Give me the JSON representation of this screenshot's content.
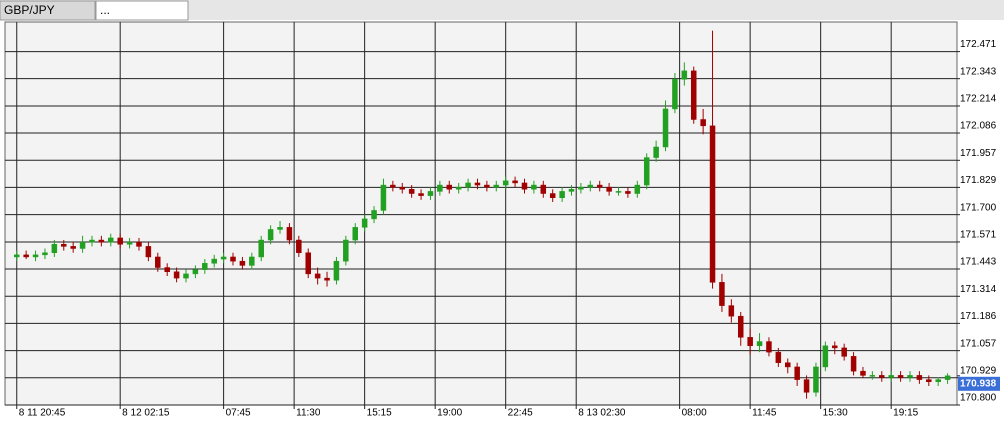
{
  "tabs": [
    "GBP/JPY",
    "..."
  ],
  "chart_data": {
    "type": "candlestick",
    "x": [
      0,
      2,
      4,
      6,
      8,
      10,
      12,
      14,
      16,
      18,
      20,
      22,
      24,
      26,
      28,
      30,
      32,
      34,
      36,
      38,
      40,
      42,
      44,
      46,
      48,
      50,
      52,
      54,
      56,
      58,
      60,
      62,
      64,
      66,
      68,
      70,
      72,
      74,
      76,
      78,
      80,
      82,
      84,
      86,
      88,
      90,
      92,
      94,
      96,
      98,
      100,
      102,
      104,
      106,
      108,
      110,
      112,
      114,
      116,
      118,
      120,
      122,
      124,
      126,
      128,
      130,
      132,
      134,
      136,
      138,
      140,
      142,
      144,
      146,
      148,
      150,
      152,
      154,
      156,
      158,
      160,
      162,
      164,
      166,
      168,
      170,
      172,
      174,
      176,
      178,
      180,
      182,
      184,
      186,
      188,
      190,
      192,
      194,
      196,
      198
    ],
    "open": [
      171.5,
      171.51,
      171.5,
      171.51,
      171.52,
      171.56,
      171.55,
      171.54,
      171.57,
      171.58,
      171.57,
      171.59,
      171.56,
      171.57,
      171.55,
      171.5,
      171.45,
      171.43,
      171.4,
      171.42,
      171.44,
      171.47,
      171.49,
      171.5,
      171.48,
      171.46,
      171.5,
      171.58,
      171.63,
      171.64,
      171.58,
      171.52,
      171.42,
      171.4,
      171.39,
      171.48,
      171.58,
      171.64,
      171.68,
      171.72,
      171.84,
      171.83,
      171.82,
      171.8,
      171.79,
      171.81,
      171.84,
      171.82,
      171.83,
      171.85,
      171.84,
      171.83,
      171.84,
      171.86,
      171.85,
      171.82,
      171.84,
      171.8,
      171.78,
      171.81,
      171.82,
      171.83,
      171.84,
      171.83,
      171.81,
      171.81,
      171.8,
      171.84,
      171.97,
      172.02,
      172.2,
      172.34,
      172.38,
      172.15,
      172.12,
      171.38,
      171.27,
      171.22,
      171.12,
      171.08,
      171.1,
      171.05,
      171.0,
      170.98,
      170.92,
      170.86,
      170.98,
      171.08,
      171.07,
      171.03,
      170.96,
      170.94,
      170.94,
      170.93,
      170.94,
      170.93,
      170.94,
      170.92,
      170.91,
      170.92
    ],
    "high": [
      171.53,
      171.53,
      171.53,
      171.54,
      171.58,
      171.58,
      171.57,
      171.6,
      171.6,
      171.6,
      171.61,
      171.61,
      171.59,
      171.59,
      171.57,
      171.52,
      171.47,
      171.45,
      171.44,
      171.46,
      171.49,
      171.51,
      171.52,
      171.52,
      171.5,
      171.52,
      171.6,
      171.65,
      171.67,
      171.66,
      171.6,
      171.54,
      171.45,
      171.43,
      171.5,
      171.6,
      171.66,
      171.7,
      171.74,
      171.87,
      171.86,
      171.85,
      171.84,
      171.82,
      171.83,
      171.86,
      171.86,
      171.85,
      171.87,
      171.87,
      171.86,
      171.86,
      171.88,
      171.88,
      171.87,
      171.86,
      171.86,
      171.82,
      171.83,
      171.84,
      171.85,
      171.86,
      171.86,
      171.85,
      171.83,
      171.83,
      171.86,
      171.99,
      172.05,
      172.24,
      172.37,
      172.42,
      172.4,
      172.2,
      172.57,
      171.42,
      171.3,
      171.24,
      171.16,
      171.14,
      171.12,
      171.07,
      171.02,
      171.0,
      170.94,
      171.0,
      171.1,
      171.1,
      171.09,
      171.05,
      170.98,
      170.96,
      170.96,
      170.96,
      170.96,
      170.96,
      170.96,
      170.94,
      170.93,
      170.95
    ],
    "low": [
      171.48,
      171.49,
      171.48,
      171.49,
      171.5,
      171.53,
      171.52,
      171.52,
      171.55,
      171.55,
      171.55,
      171.54,
      171.54,
      171.53,
      171.48,
      171.43,
      171.41,
      171.38,
      171.38,
      171.4,
      171.42,
      171.45,
      171.47,
      171.46,
      171.44,
      171.44,
      171.48,
      171.56,
      171.61,
      171.56,
      171.5,
      171.4,
      171.37,
      171.36,
      171.37,
      171.46,
      171.56,
      171.62,
      171.66,
      171.7,
      171.81,
      171.8,
      171.78,
      171.77,
      171.77,
      171.79,
      171.8,
      171.8,
      171.81,
      171.82,
      171.81,
      171.81,
      171.82,
      171.83,
      171.8,
      171.8,
      171.78,
      171.76,
      171.76,
      171.79,
      171.8,
      171.81,
      171.81,
      171.79,
      171.79,
      171.78,
      171.78,
      171.82,
      171.95,
      172.0,
      172.18,
      172.31,
      172.13,
      172.08,
      171.35,
      171.24,
      171.19,
      171.08,
      171.04,
      171.05,
      171.03,
      170.98,
      170.95,
      170.89,
      170.83,
      170.84,
      170.96,
      171.04,
      171.01,
      170.94,
      170.93,
      170.92,
      170.91,
      170.91,
      170.91,
      170.91,
      170.9,
      170.89,
      170.89,
      170.9
    ],
    "close": [
      171.51,
      171.5,
      171.51,
      171.52,
      171.56,
      171.55,
      171.54,
      171.57,
      171.58,
      171.57,
      171.59,
      171.56,
      171.57,
      171.55,
      171.5,
      171.45,
      171.43,
      171.4,
      171.42,
      171.44,
      171.47,
      171.49,
      171.5,
      171.48,
      171.46,
      171.5,
      171.58,
      171.63,
      171.64,
      171.58,
      171.52,
      171.42,
      171.4,
      171.39,
      171.48,
      171.58,
      171.64,
      171.68,
      171.72,
      171.84,
      171.83,
      171.82,
      171.8,
      171.79,
      171.81,
      171.84,
      171.82,
      171.83,
      171.85,
      171.84,
      171.83,
      171.84,
      171.86,
      171.85,
      171.82,
      171.84,
      171.8,
      171.78,
      171.81,
      171.82,
      171.83,
      171.84,
      171.83,
      171.81,
      171.81,
      171.8,
      171.84,
      171.97,
      172.02,
      172.2,
      172.34,
      172.38,
      172.15,
      172.12,
      171.38,
      171.27,
      171.22,
      171.12,
      171.08,
      171.1,
      171.05,
      171.0,
      170.98,
      170.92,
      170.86,
      170.98,
      171.08,
      171.07,
      171.03,
      170.96,
      170.94,
      170.94,
      170.93,
      170.94,
      170.93,
      170.94,
      170.92,
      170.91,
      170.92,
      170.938
    ],
    "up_color": "#22a022",
    "down_color": "#a00000",
    "last_price": 170.938,
    "xlim": [
      -2.5,
      200
    ],
    "xticks": [
      {
        "value": 0,
        "label": "8 11 20:45"
      },
      {
        "value": 22,
        "label": "8 12 02:15"
      },
      {
        "value": 44,
        "label": "07:45"
      },
      {
        "value": 59,
        "label": "11:30"
      },
      {
        "value": 74,
        "label": "15:15"
      },
      {
        "value": 89,
        "label": "19:00"
      },
      {
        "value": 104,
        "label": "22:45"
      },
      {
        "value": 119,
        "label": "8 13 02:30"
      },
      {
        "value": 141,
        "label": "08:00"
      },
      {
        "value": 156,
        "label": "11:45"
      },
      {
        "value": 171,
        "label": "15:30"
      },
      {
        "value": 186,
        "label": "19:15"
      }
    ],
    "ylim": [
      170.8,
      172.611
    ],
    "yticks": [
      {
        "value": 170.8,
        "label": "170.800"
      },
      170.929,
      171.057,
      171.186,
      171.314,
      171.443,
      171.571,
      {
        "value": 171.7,
        "label": "171.700"
      },
      171.829,
      171.957,
      172.086,
      172.214,
      172.343,
      172.471
    ],
    "grid": true
  }
}
